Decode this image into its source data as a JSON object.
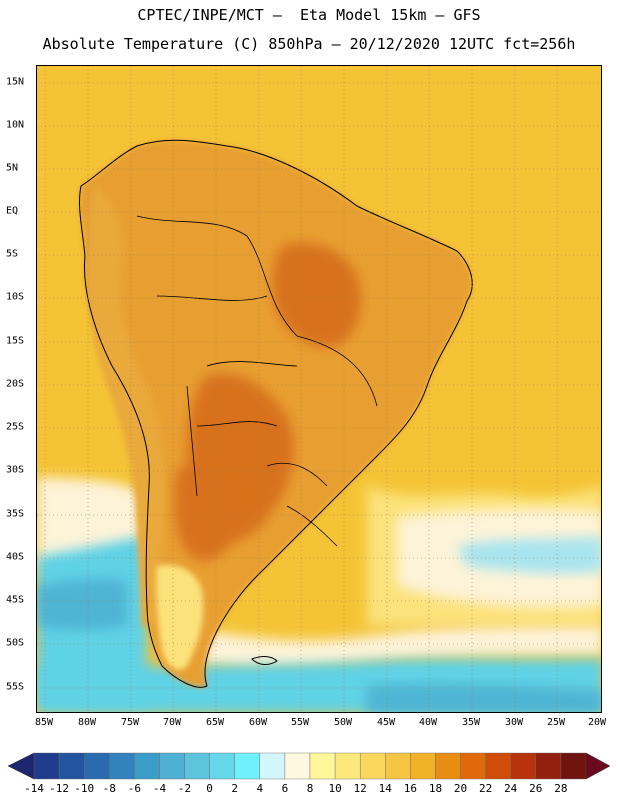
{
  "header": {
    "line1": "CPTEC/INPE/MCT –  Eta Model 15km – GFS",
    "line2": "Absolute Temperature (C) 850hPa – 20/12/2020 12UTC fct=256h"
  },
  "axes": {
    "lat_labels": [
      "15N",
      "10N",
      "5N",
      "EQ",
      "5S",
      "10S",
      "15S",
      "20S",
      "25S",
      "30S",
      "35S",
      "40S",
      "45S",
      "50S",
      "55S"
    ],
    "lon_labels": [
      "85W",
      "80W",
      "75W",
      "70W",
      "65W",
      "60W",
      "55W",
      "50W",
      "45W",
      "40W",
      "35W",
      "30W",
      "25W",
      "20W"
    ]
  },
  "legend": {
    "labels": [
      "-14",
      "-12",
      "-10",
      "-8",
      "-6",
      "-4",
      "-2",
      "0",
      "2",
      "4",
      "6",
      "8",
      "10",
      "12",
      "14",
      "16",
      "18",
      "20",
      "22",
      "24",
      "26",
      "28"
    ],
    "colors": [
      "#1f3d8c",
      "#23549f",
      "#2a6aae",
      "#3182bd",
      "#3b9cc8",
      "#4eb1d3",
      "#5ec4de",
      "#66d6e9",
      "#70f0fa",
      "#d2f6fb",
      "#fff8e1",
      "#fff89a",
      "#fde97b",
      "#fbd760",
      "#f7c544",
      "#f2b228",
      "#e88d14",
      "#e06a0a",
      "#cf4c0a",
      "#b8330c",
      "#93200e",
      "#701410"
    ],
    "low_arrow_color": "#1e2670",
    "high_arrow_color": "#6b0a1e"
  },
  "map": {
    "ocean_color": "#f4c436",
    "brazil_interior_color": "#e89f30",
    "hot_core_color": "#d8711e",
    "andes_color": "#e9a93a",
    "patagonia_color": "#fce27a",
    "south_cold_color": "#5fd2e6",
    "cold_mid_color": "#a8e4ef",
    "cold_deep_color": "#4fb4d4",
    "pale_color": "#fdf3d8"
  }
}
